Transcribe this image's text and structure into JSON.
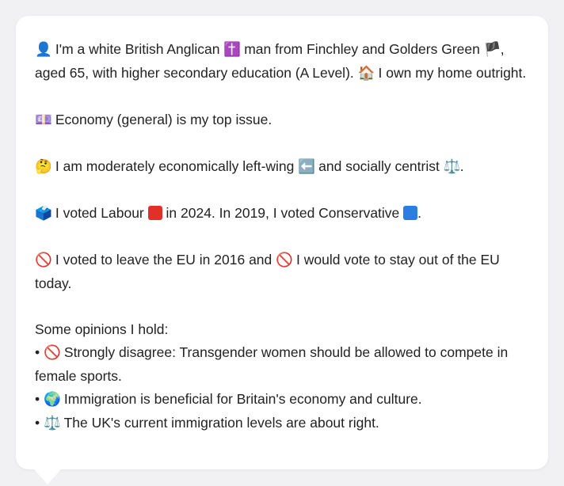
{
  "profile": {
    "line1_a": "I'm a white British Anglican",
    "line1_b": "man from Finchley and Golders Green",
    "line1_c": ", aged 65, with higher secondary education (A Level).",
    "line1_d": "I own my home outright.",
    "issue": "Economy (general) is my top issue.",
    "ideology_a": "I am moderately economically left-wing",
    "ideology_b": "and socially centrist",
    "ideology_c": ".",
    "vote_a": "I voted Labour",
    "vote_b": "in 2024. In 2019, I voted Conservative",
    "vote_c": ".",
    "eu_a": "I voted to leave the EU in 2016 and",
    "eu_b": "I would vote to stay out of the EU today.",
    "opinions_heading": "Some opinions I hold:",
    "opinions": [
      {
        "bullet": "•",
        "text": "Strongly disagree: Transgender women should be allowed to compete in female sports."
      },
      {
        "bullet": "•",
        "text": "Immigration is beneficial for Britain's economy and culture."
      },
      {
        "bullet": "•",
        "text": "The UK's current immigration levels are about right."
      }
    ]
  },
  "icons": {
    "person": "👤",
    "cross": "✝️",
    "flag": "🏴",
    "house": "🏠",
    "money": "💷",
    "thinking": "🤔",
    "left_arrow": "⬅️",
    "scales": "⚖️",
    "ballot": "🗳️",
    "no": "🚫",
    "globe": "🌍"
  },
  "colors": {
    "labour": "#e0302a",
    "conservative": "#2a7de1",
    "background": "#f1f1f3",
    "card": "#ffffff",
    "text": "#222222"
  }
}
